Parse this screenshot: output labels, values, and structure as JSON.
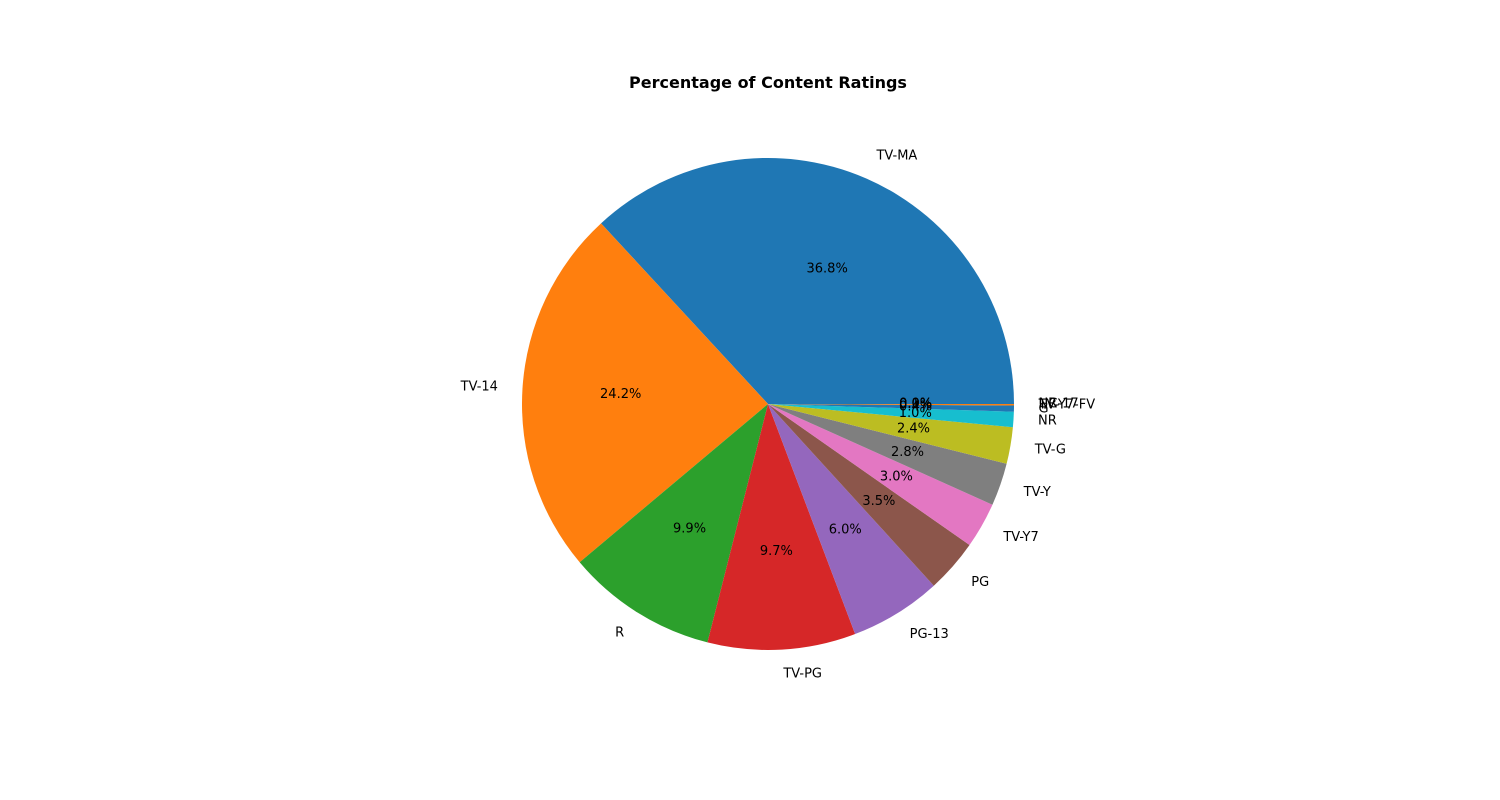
{
  "chart_data": {
    "type": "pie",
    "title": "Percentage of Content Ratings",
    "start_angle_deg": 0,
    "direction": "counterclockwise",
    "slices": [
      {
        "label": "TV-MA",
        "value": 36.8,
        "pct_label": "36.8%",
        "color": "#1f77b4"
      },
      {
        "label": "TV-14",
        "value": 24.2,
        "pct_label": "24.2%",
        "color": "#ff7f0e"
      },
      {
        "label": "R",
        "value": 9.9,
        "pct_label": "9.9%",
        "color": "#2ca02c"
      },
      {
        "label": "TV-PG",
        "value": 9.7,
        "pct_label": "9.7%",
        "color": "#d62728"
      },
      {
        "label": "PG-13",
        "value": 6.0,
        "pct_label": "6.0%",
        "color": "#9467bd"
      },
      {
        "label": "PG",
        "value": 3.5,
        "pct_label": "3.5%",
        "color": "#8c564b"
      },
      {
        "label": "TV-Y7",
        "value": 3.0,
        "pct_label": "3.0%",
        "color": "#e377c2"
      },
      {
        "label": "TV-Y",
        "value": 2.8,
        "pct_label": "2.8%",
        "color": "#7f7f7f"
      },
      {
        "label": "TV-G",
        "value": 2.4,
        "pct_label": "2.4%",
        "color": "#bcbd22"
      },
      {
        "label": "NR",
        "value": 1.0,
        "pct_label": "1.0%",
        "color": "#17becf"
      },
      {
        "label": "G",
        "value": 0.4,
        "pct_label": "0.4%",
        "color": "#1f77b4"
      },
      {
        "label": "TV-Y7-FV",
        "value": 0.1,
        "pct_label": "0.1%",
        "color": "#ff7f0e"
      },
      {
        "label": "NC-17",
        "value": 0.0,
        "pct_label": "0.0%",
        "color": "#2ca02c"
      },
      {
        "label": "UR",
        "value": 0.0,
        "pct_label": "0.0%",
        "color": "#d62728"
      }
    ]
  }
}
